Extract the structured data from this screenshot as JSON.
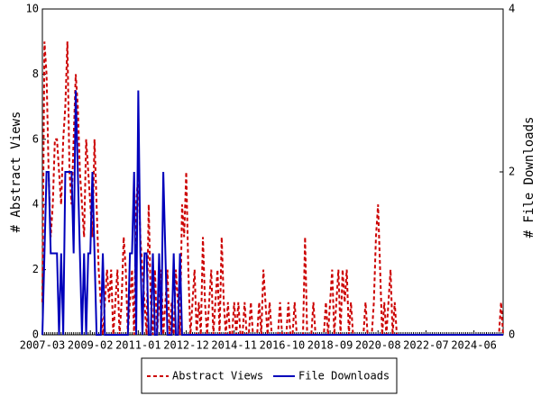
{
  "chart_data": {
    "type": "line",
    "y_label": "# Abstract Views",
    "y2_label": "# File Downloads",
    "categories": [
      "2007-03",
      null,
      null,
      null,
      null,
      null,
      null,
      null,
      null,
      null,
      null,
      null,
      null,
      null,
      null,
      null,
      null,
      null,
      null,
      null,
      null,
      null,
      null,
      "2009-02",
      null,
      null,
      null,
      null,
      null,
      null,
      null,
      null,
      null,
      null,
      null,
      null,
      null,
      null,
      null,
      null,
      null,
      null,
      null,
      null,
      null,
      null,
      "2011-01",
      null,
      null,
      null,
      null,
      null,
      null,
      null,
      null,
      null,
      null,
      null,
      null,
      null,
      null,
      null,
      null,
      null,
      null,
      null,
      null,
      null,
      null,
      "2012-12",
      null,
      null,
      null,
      null,
      null,
      null,
      null,
      null,
      null,
      null,
      null,
      null,
      null,
      null,
      null,
      null,
      null,
      null,
      null,
      null,
      null,
      null,
      "2014-11",
      null,
      null,
      null,
      null,
      null,
      null,
      null,
      null,
      null,
      null,
      null,
      null,
      null,
      null,
      null,
      null,
      null,
      null,
      null,
      null,
      null,
      null,
      "2016-10",
      null,
      null,
      null,
      null,
      null,
      null,
      null,
      null,
      null,
      null,
      null,
      null,
      null,
      null,
      null,
      null,
      null,
      null,
      null,
      null,
      null,
      null,
      "2018-09",
      null,
      null,
      null,
      null,
      null,
      null,
      null,
      null,
      null,
      null,
      null,
      null,
      null,
      null,
      null,
      null,
      null,
      null,
      null,
      null,
      null,
      null,
      "2020-08",
      null,
      null,
      null,
      null,
      null,
      null,
      null,
      null,
      null,
      null,
      null,
      null,
      null,
      null,
      null,
      null,
      null,
      null,
      null,
      null,
      null,
      null,
      "2022-07",
      null,
      null,
      null,
      null,
      null,
      null,
      null,
      null,
      null,
      null,
      null,
      null,
      null,
      null,
      null,
      null,
      null,
      null,
      null,
      null,
      null,
      null,
      "2024-06",
      null,
      null,
      null,
      null,
      null,
      null,
      null,
      null,
      null,
      null,
      null,
      null,
      null,
      null
    ],
    "series": [
      {
        "name": "Abstract Views",
        "color": "#cc0000",
        "dash": true,
        "values": [
          1,
          9,
          8,
          5,
          3,
          4,
          6,
          6,
          5,
          4,
          6,
          7,
          9,
          5,
          4,
          6,
          8,
          7,
          5,
          4,
          3,
          6,
          5,
          4,
          3,
          6,
          4,
          2,
          1,
          0,
          1,
          2,
          1,
          2,
          0,
          1,
          2,
          0,
          1,
          3,
          2,
          0,
          1,
          2,
          0,
          4,
          5,
          3,
          2,
          1,
          0,
          4,
          1,
          0,
          2,
          0,
          1,
          2,
          0,
          1,
          2,
          0,
          1,
          0,
          2,
          1,
          0,
          4,
          3,
          5,
          2,
          0,
          1,
          2,
          0,
          1,
          0,
          3,
          1,
          0,
          1,
          2,
          0,
          1,
          2,
          0,
          3,
          1,
          0,
          1,
          0,
          0,
          1,
          0,
          1,
          0,
          0,
          1,
          0,
          0,
          1,
          0,
          0,
          0,
          1,
          0,
          2,
          1,
          0,
          1,
          0,
          0,
          0,
          0,
          1,
          0,
          0,
          0,
          1,
          0,
          0,
          1,
          0,
          0,
          0,
          0,
          3,
          0,
          0,
          0,
          1,
          0,
          0,
          0,
          0,
          0,
          1,
          0,
          1,
          2,
          0,
          1,
          2,
          0,
          2,
          1,
          2,
          0,
          1,
          0,
          0,
          0,
          0,
          0,
          0,
          1,
          0,
          0,
          0,
          1,
          3,
          4,
          2,
          0,
          1,
          0,
          1,
          2,
          0,
          1,
          0,
          0,
          0,
          0,
          0,
          0,
          0,
          0,
          0,
          0,
          0,
          0,
          0,
          0,
          0,
          0,
          0,
          0,
          0,
          0,
          0,
          0,
          0,
          0,
          0,
          0,
          0,
          0,
          0,
          0,
          0,
          0,
          0,
          0,
          0,
          0,
          0,
          0,
          0,
          0,
          0,
          0,
          0,
          0,
          0,
          0,
          0,
          0,
          0,
          0,
          1,
          0
        ]
      },
      {
        "name": "File Downloads",
        "color": "#0000bb",
        "axis": "y2",
        "values": [
          0,
          1,
          2,
          2,
          1,
          1,
          1,
          1,
          0,
          1,
          0,
          2,
          2,
          2,
          2,
          1,
          3,
          2,
          1,
          0,
          1,
          0,
          1,
          1,
          2,
          1,
          0,
          0,
          0,
          1,
          0,
          0,
          0,
          0,
          0,
          0,
          0,
          0,
          0,
          0,
          0,
          0,
          1,
          1,
          2,
          0,
          3,
          1,
          0,
          1,
          1,
          0,
          0,
          1,
          0,
          0,
          1,
          0,
          2,
          1,
          0,
          0,
          0,
          1,
          0,
          0,
          1,
          0,
          0,
          0,
          0,
          0,
          0,
          0,
          0,
          0,
          0,
          0,
          0,
          0,
          0,
          0,
          0,
          0,
          0,
          0,
          0,
          0,
          0,
          0,
          0,
          0,
          0,
          0,
          0,
          0,
          0,
          0,
          0,
          0,
          0,
          0,
          0,
          0,
          0,
          0,
          0,
          0,
          0,
          0,
          0,
          0,
          0,
          0,
          0,
          0,
          0,
          0,
          0,
          0,
          0,
          0,
          0,
          0,
          0,
          0,
          0,
          0,
          0,
          0,
          0,
          0,
          0,
          0,
          0,
          0,
          0,
          0,
          0,
          0,
          0,
          0,
          0,
          0,
          0,
          0,
          0,
          0,
          0,
          0,
          0,
          0,
          0,
          0,
          0,
          0,
          0,
          0,
          0,
          0,
          0,
          0,
          0,
          0,
          0,
          0,
          0,
          0,
          0,
          0,
          0,
          0,
          0,
          0,
          0,
          0,
          0,
          0,
          0,
          0,
          0,
          0,
          0,
          0,
          0,
          0,
          0,
          0,
          0,
          0,
          0,
          0,
          0,
          0,
          0,
          0,
          0,
          0,
          0,
          0,
          0,
          0,
          0,
          0,
          0,
          0,
          0,
          0,
          0,
          0,
          0,
          0,
          0,
          0,
          0,
          0,
          0,
          0,
          0,
          0,
          0,
          0
        ]
      }
    ],
    "ylim": [
      0,
      10
    ],
    "yticks": [
      0,
      2,
      4,
      6,
      8,
      10
    ],
    "y2lim": [
      0,
      4
    ],
    "y2ticks": [
      0,
      2,
      4
    ],
    "legend": "bottom"
  }
}
